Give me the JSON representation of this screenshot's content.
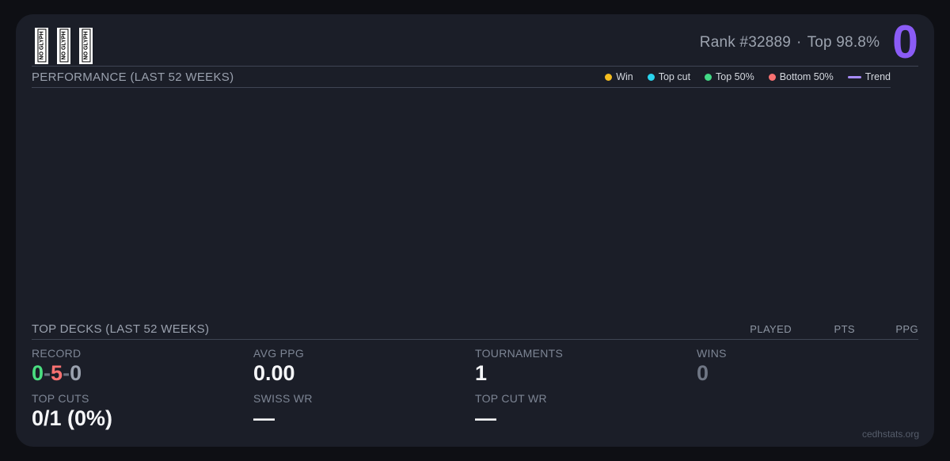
{
  "header": {
    "glyphs": [
      "NO GLYPH",
      "NO GLYPH",
      "NO GLYPH"
    ],
    "rank_text": "Rank #32889",
    "separator": "·",
    "top_percent_text": "Top 98.8%",
    "score": "0",
    "score_color": "#8b5cf6"
  },
  "performance": {
    "title": "PERFORMANCE (LAST 52 WEEKS)",
    "legend": [
      {
        "label": "Win",
        "color": "#f5bd1f",
        "shape": "dot"
      },
      {
        "label": "Top cut",
        "color": "#2ad4ee",
        "shape": "dot"
      },
      {
        "label": "Top 50%",
        "color": "#42d985",
        "shape": "dot"
      },
      {
        "label": "Bottom 50%",
        "color": "#f87171",
        "shape": "dot"
      },
      {
        "label": "Trend",
        "color": "#a78bfa",
        "shape": "line"
      }
    ]
  },
  "top_decks": {
    "title": "TOP DECKS (LAST 52 WEEKS)",
    "columns": [
      "PLAYED",
      "PTS",
      "PPG"
    ],
    "rows": []
  },
  "stats": {
    "record": {
      "label": "RECORD",
      "wins": "0",
      "losses": "5",
      "draws": "0",
      "sep": "-"
    },
    "avg_ppg": {
      "label": "AVG PPG",
      "value": "0.00"
    },
    "tournaments": {
      "label": "TOURNAMENTS",
      "value": "1"
    },
    "wins": {
      "label": "WINS",
      "value": "0"
    },
    "top_cuts": {
      "label": "TOP CUTS",
      "value": "0/1 (0%)"
    },
    "swiss_wr": {
      "label": "SWISS WR",
      "value": "—"
    },
    "top_cut_wr": {
      "label": "TOP CUT WR",
      "value": "—"
    }
  },
  "footer": {
    "site": "cedhstats.org"
  },
  "colors": {
    "page_bg": "#0e0f14",
    "card_bg": "#1b1e28",
    "divider": "#3f4554",
    "accent_purple": "#8b5cf6",
    "win_green": "#4ade80",
    "loss_red": "#f87171"
  }
}
